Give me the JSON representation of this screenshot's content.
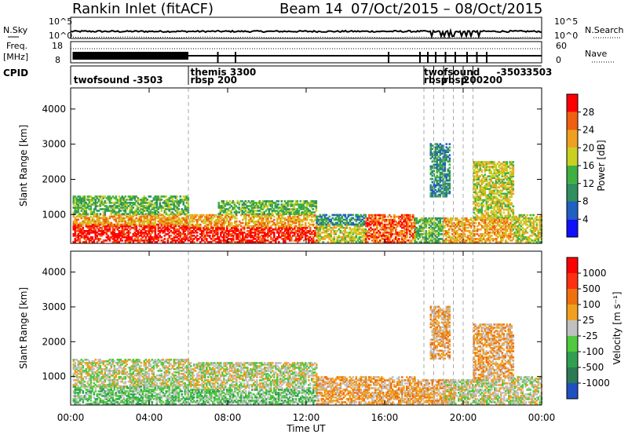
{
  "header": {
    "station": "Rankin Inlet (fitACF)",
    "beam": "Beam 14",
    "dates": "07/Oct/2015 – 08/Oct/2015"
  },
  "strip_labels": {
    "nsky": "N.Sky",
    "nsky_tick_hi": "10^5",
    "nsky_tick_lo": "10^0",
    "nsearch": "N.Search",
    "freq_line1": "Freq.",
    "freq_line2": "[MHz]",
    "freq_tick_hi": "18",
    "freq_tick_lo": "8",
    "nave": "Nave",
    "nave_tick_hi": "60",
    "nave_tick_lo": "0",
    "cpid": "CPID"
  },
  "chart_data": [
    {
      "type": "heatmap",
      "name": "power",
      "ylabel": "Slant Range [km]",
      "xlabel": "Time UT",
      "xlim": [
        0,
        24
      ],
      "ylim": [
        180,
        4600
      ],
      "x_ticks": [
        "00:00",
        "04:00",
        "08:00",
        "12:00",
        "16:00",
        "20:00",
        "00:00"
      ],
      "y_ticks": [
        1000,
        2000,
        3000,
        4000
      ],
      "colorbar": {
        "label": "Power [dB]",
        "ticks": [
          4,
          8,
          12,
          16,
          20,
          24,
          28
        ],
        "colors": [
          "#1010ff",
          "#2060c0",
          "#2f8f5f",
          "#40b040",
          "#c8d020",
          "#f0a020",
          "#f06010",
          "#ff0000"
        ]
      },
      "regions": [
        {
          "t0": 0.1,
          "t1": 6.0,
          "r0": 200,
          "r1": 700,
          "level": 7
        },
        {
          "t0": 0.1,
          "t1": 6.0,
          "r0": 700,
          "r1": 1000,
          "level": 5
        },
        {
          "t0": 0.1,
          "t1": 6.0,
          "r0": 1000,
          "r1": 1500,
          "level": 3
        },
        {
          "t0": 6.0,
          "t1": 12.5,
          "r0": 200,
          "r1": 650,
          "level": 7
        },
        {
          "t0": 6.0,
          "t1": 12.5,
          "r0": 650,
          "r1": 1000,
          "level": 5
        },
        {
          "t0": 7.5,
          "t1": 12.5,
          "r0": 1000,
          "r1": 1400,
          "level": 3
        },
        {
          "t0": 12.5,
          "t1": 15.0,
          "r0": 200,
          "r1": 700,
          "level": 4
        },
        {
          "t0": 12.5,
          "t1": 15.0,
          "r0": 700,
          "r1": 1000,
          "level": 2
        },
        {
          "t0": 15.0,
          "t1": 17.5,
          "r0": 200,
          "r1": 1000,
          "level": 6
        },
        {
          "t0": 17.5,
          "t1": 19.0,
          "r0": 200,
          "r1": 900,
          "level": 3
        },
        {
          "t0": 18.3,
          "t1": 19.3,
          "r0": 1500,
          "r1": 3000,
          "level": 2
        },
        {
          "t0": 19.0,
          "t1": 22.5,
          "r0": 200,
          "r1": 900,
          "level": 5
        },
        {
          "t0": 20.5,
          "t1": 22.5,
          "r0": 900,
          "r1": 2500,
          "level": 4
        },
        {
          "t0": 22.5,
          "t1": 24.0,
          "r0": 200,
          "r1": 1000,
          "level": 4
        }
      ]
    },
    {
      "type": "heatmap",
      "name": "velocity",
      "ylabel": "Slant Range [km]",
      "xlabel": "Time UT",
      "xlim": [
        0,
        24
      ],
      "ylim": [
        180,
        4600
      ],
      "x_ticks": [
        "00:00",
        "04:00",
        "08:00",
        "12:00",
        "16:00",
        "20:00",
        "00:00"
      ],
      "y_ticks": [
        1000,
        2000,
        3000,
        4000
      ],
      "colorbar": {
        "label": "Velocity [m s⁻¹]",
        "ticks": [
          1000,
          500,
          100,
          25,
          -25,
          -100,
          -500,
          -1000
        ],
        "colors": [
          "#2050c0",
          "#2e7a56",
          "#30a050",
          "#50c840",
          "#c0c0c0",
          "#f0a020",
          "#f07010",
          "#ff3010",
          "#ff0000"
        ]
      },
      "regions": [
        {
          "t0": 0.1,
          "t1": 6.0,
          "r0": 200,
          "r1": 700,
          "level": 3
        },
        {
          "t0": 0.1,
          "t1": 6.0,
          "r0": 700,
          "r1": 1500,
          "level": 4
        },
        {
          "t0": 6.0,
          "t1": 12.5,
          "r0": 200,
          "r1": 650,
          "level": 3
        },
        {
          "t0": 6.0,
          "t1": 12.5,
          "r0": 650,
          "r1": 1400,
          "level": 4
        },
        {
          "t0": 12.5,
          "t1": 15.0,
          "r0": 200,
          "r1": 1000,
          "level": 5
        },
        {
          "t0": 15.0,
          "t1": 17.5,
          "r0": 200,
          "r1": 1000,
          "level": 5
        },
        {
          "t0": 17.5,
          "t1": 19.5,
          "r0": 200,
          "r1": 900,
          "level": 5
        },
        {
          "t0": 18.3,
          "t1": 19.3,
          "r0": 1500,
          "r1": 3000,
          "level": 5
        },
        {
          "t0": 19.0,
          "t1": 22.5,
          "r0": 200,
          "r1": 900,
          "level": 4
        },
        {
          "t0": 20.5,
          "t1": 22.5,
          "r0": 900,
          "r1": 2500,
          "level": 5
        },
        {
          "t0": 22.5,
          "t1": 24.0,
          "r0": 200,
          "r1": 1000,
          "level": 4
        }
      ]
    }
  ],
  "cpid_labels": [
    {
      "text": "twofsound -3503",
      "t": 0.15,
      "row": 1
    },
    {
      "text": "themis 3300",
      "t": 6.1,
      "row": 0
    },
    {
      "text": "rbsp 200",
      "t": 6.1,
      "row": 1
    },
    {
      "text": "twofsound",
      "t": 18.0,
      "row": 0
    },
    {
      "text": "-3503",
      "t": 21.7,
      "row": 0
    },
    {
      "text": "3503",
      "t": 23.2,
      "row": 0
    },
    {
      "text": "rbsp",
      "t": 18.0,
      "row": 1
    },
    {
      "text": "rbsp",
      "t": 19.0,
      "row": 1
    },
    {
      "text": "200",
      "t": 20.0,
      "row": 1
    },
    {
      "text": "200",
      "t": 21.0,
      "row": 1
    }
  ],
  "cpid_change_times": [
    6.0,
    18.0,
    18.5,
    19.0,
    19.5,
    20.0,
    20.5
  ]
}
